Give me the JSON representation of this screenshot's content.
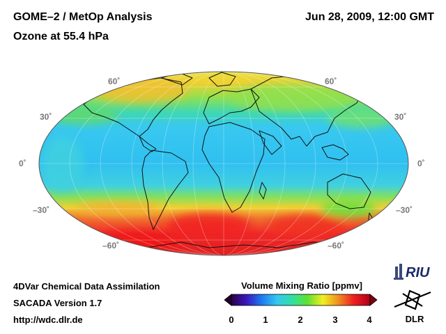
{
  "header": {
    "title": "GOME–2 / MetOp Analysis",
    "subtitle": "Ozone at 55.4 hPa",
    "datetime": "Jun 28, 2009, 12:00 GMT"
  },
  "footer": {
    "line1": "4DVar Chemical Data Assimilation",
    "line2": "SACADA Version 1.7",
    "line3": "http://wdc.dlr.de"
  },
  "colorbar": {
    "title": "Volume Mixing Ratio [ppmv]",
    "ticks": [
      "0",
      "1",
      "2",
      "3",
      "4"
    ],
    "range": [
      0,
      4
    ],
    "stops": [
      "#2a004a",
      "#3a18c0",
      "#1a7cf0",
      "#35c8f0",
      "#30e0a0",
      "#60e030",
      "#f0f020",
      "#f09020",
      "#f02020",
      "#b00018"
    ]
  },
  "map": {
    "projection": "Mollweide",
    "lat_labels_left": [
      "60˚",
      "30˚",
      "0˚",
      "–30˚",
      "–60˚"
    ],
    "lat_labels_right": [
      "60˚",
      "30˚",
      "0˚",
      "–30˚",
      "–60˚"
    ]
  },
  "logos": {
    "riu": "RIU",
    "dlr": "DLR"
  }
}
